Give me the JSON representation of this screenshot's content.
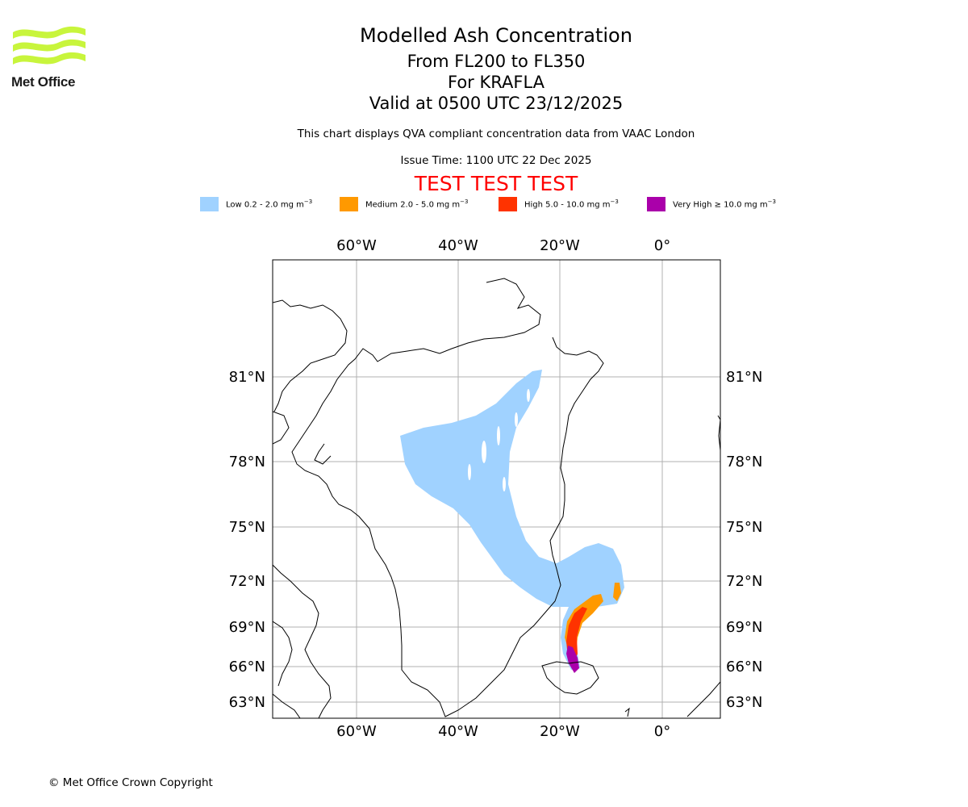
{
  "logo": {
    "text": "Met Office",
    "wave_color": "#c8f53c"
  },
  "header": {
    "title": "Modelled Ash Concentration",
    "flight_levels": "From FL200 to FL350",
    "volcano": "For KRAFLA",
    "valid_time": "Valid at 0500 UTC 23/12/2025",
    "description": "This chart displays QVA compliant concentration data from VAAC London",
    "issue_time": "Issue Time: 1100 UTC 22 Dec 2025",
    "test_banner": "TEST TEST TEST"
  },
  "legend": [
    {
      "level": "Low",
      "range": "0.2 - 2.0 mg m",
      "color": "#a0d2ff"
    },
    {
      "level": "Medium",
      "range": "2.0 - 5.0 mg m",
      "color": "#ff9900"
    },
    {
      "level": "High",
      "range": "5.0 - 10.0 mg m",
      "color": "#ff3300"
    },
    {
      "level": "Very High",
      "range": "≥  10.0 mg m",
      "color": "#aa00aa"
    }
  ],
  "legend_unit_exponent": "−3",
  "map": {
    "longitude_labels": [
      "60°W",
      "40°W",
      "20°W",
      "0°"
    ],
    "latitude_labels": [
      "81°N",
      "78°N",
      "75°N",
      "72°N",
      "69°N",
      "66°N",
      "63°N"
    ],
    "colors": {
      "low": "#a0d2ff",
      "medium": "#ff9900",
      "high": "#ff3300",
      "very_high": "#aa00aa",
      "grid": "#b0b0b0",
      "coast": "#000000"
    }
  },
  "footer": {
    "copyright": "© Met Office Crown Copyright"
  }
}
